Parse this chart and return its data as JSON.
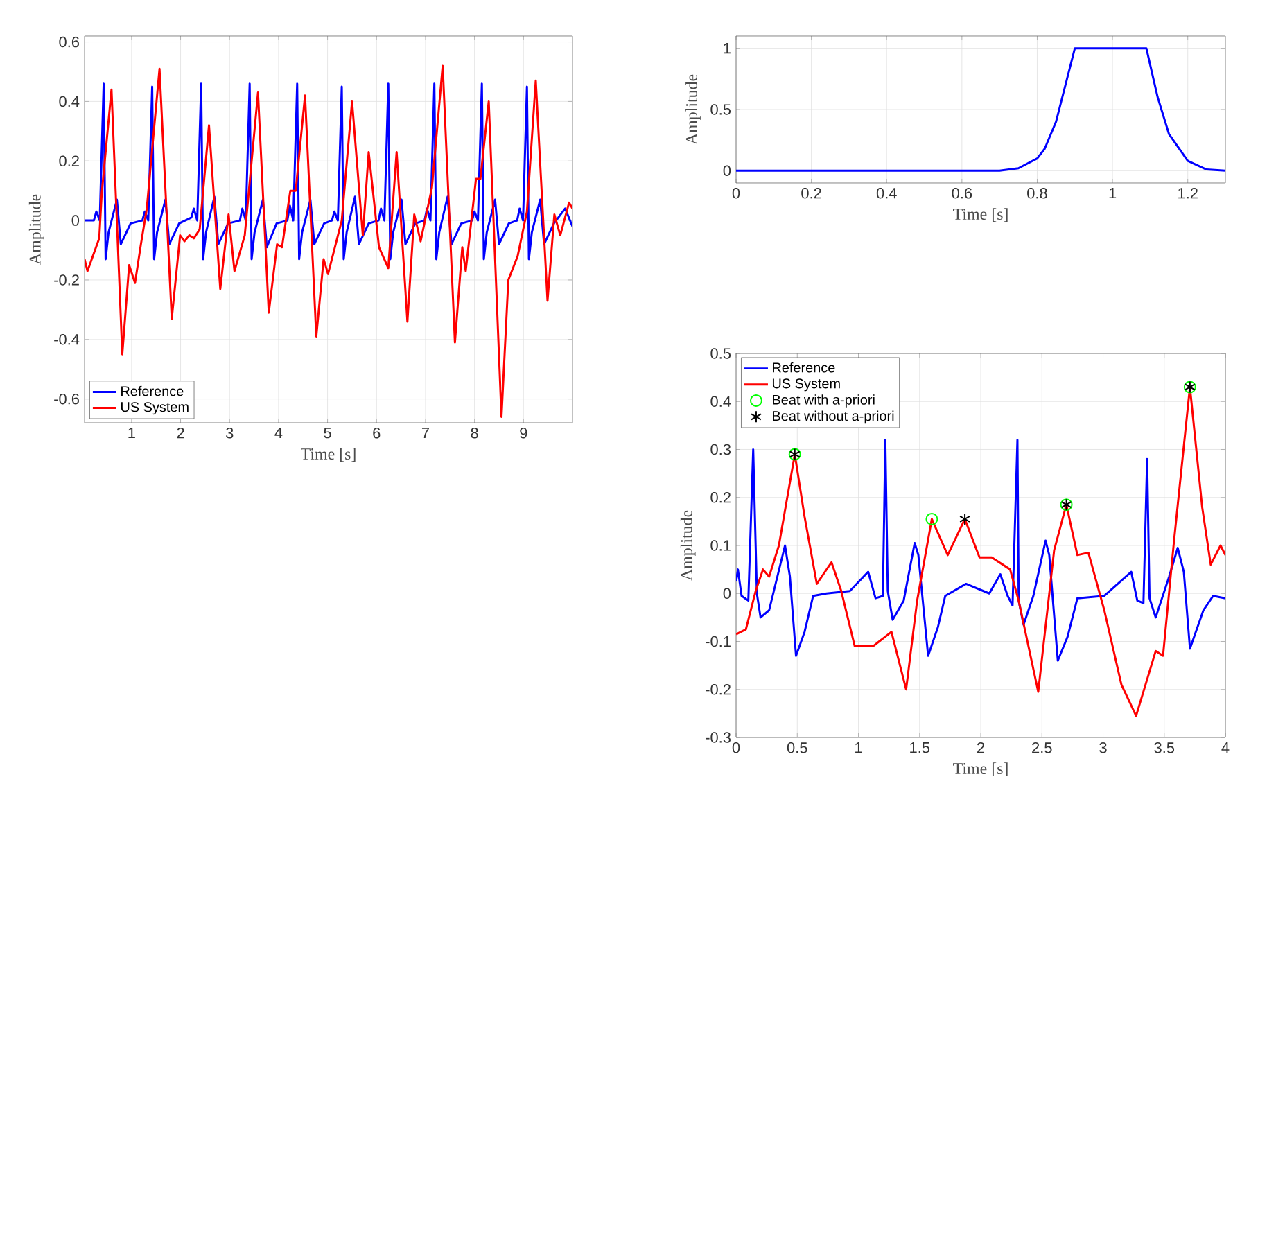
{
  "chart_data": [
    {
      "type": "line",
      "xlabel": "Time [s]",
      "ylabel": "Amplitude",
      "xlim": [
        0.04,
        10
      ],
      "ylim": [
        -0.68,
        0.62
      ],
      "xticks": [
        1,
        2,
        3,
        4,
        5,
        6,
        7,
        8,
        9
      ],
      "yticks": [
        -0.6,
        -0.4,
        -0.2,
        0,
        0.2,
        0.4,
        0.6
      ],
      "grid": true,
      "legend": "bottom left",
      "series": [
        {
          "name": "Reference",
          "color": "#0000ff",
          "x": [
            0.04,
            0.23,
            0.28,
            0.35,
            0.43,
            0.47,
            0.53,
            0.7,
            0.78,
            0.98,
            1.22,
            1.27,
            1.34,
            1.42,
            1.46,
            1.52,
            1.69,
            1.77,
            1.97,
            2.22,
            2.27,
            2.34,
            2.42,
            2.46,
            2.52,
            2.69,
            2.77,
            2.97,
            3.21,
            3.26,
            3.33,
            3.41,
            3.45,
            3.51,
            3.68,
            3.76,
            3.96,
            4.18,
            4.23,
            4.3,
            4.38,
            4.42,
            4.48,
            4.65,
            4.73,
            4.93,
            5.09,
            5.14,
            5.21,
            5.29,
            5.33,
            5.39,
            5.56,
            5.64,
            5.84,
            6.04,
            6.09,
            6.16,
            6.24,
            6.28,
            6.34,
            6.51,
            6.59,
            6.79,
            6.98,
            7.03,
            7.1,
            7.18,
            7.22,
            7.28,
            7.45,
            7.53,
            7.73,
            7.95,
            8.0,
            8.07,
            8.15,
            8.19,
            8.25,
            8.42,
            8.5,
            8.7,
            8.87,
            8.92,
            8.99,
            9.07,
            9.11,
            9.17,
            9.34,
            9.42,
            9.62,
            9.85,
            10.0
          ],
          "values": [
            0.0,
            0.0,
            0.03,
            0.0,
            0.46,
            -0.13,
            -0.04,
            0.07,
            -0.08,
            -0.01,
            0.0,
            0.03,
            0.0,
            0.45,
            -0.13,
            -0.04,
            0.07,
            -0.08,
            -0.01,
            0.01,
            0.04,
            0.0,
            0.46,
            -0.13,
            -0.04,
            0.08,
            -0.08,
            -0.01,
            0.0,
            0.04,
            0.0,
            0.46,
            -0.13,
            -0.04,
            0.07,
            -0.09,
            -0.01,
            0.0,
            0.05,
            0.0,
            0.46,
            -0.13,
            -0.04,
            0.07,
            -0.08,
            -0.01,
            0.0,
            0.03,
            0.0,
            0.45,
            -0.13,
            -0.04,
            0.08,
            -0.08,
            -0.01,
            0.0,
            0.04,
            0.0,
            0.46,
            -0.13,
            -0.04,
            0.07,
            -0.08,
            -0.01,
            0.0,
            0.04,
            0.0,
            0.46,
            -0.13,
            -0.04,
            0.08,
            -0.08,
            -0.01,
            0.0,
            0.03,
            0.0,
            0.46,
            -0.13,
            -0.04,
            0.07,
            -0.08,
            -0.01,
            0.0,
            0.04,
            0.0,
            0.45,
            -0.13,
            -0.04,
            0.07,
            -0.08,
            -0.01,
            0.04,
            -0.02
          ]
        },
        {
          "name": "US System",
          "color": "#ff0000",
          "x": [
            0.04,
            0.1,
            0.34,
            0.39,
            0.59,
            0.81,
            0.95,
            1.07,
            1.19,
            1.31,
            1.57,
            1.82,
            1.99,
            2.08,
            2.18,
            2.27,
            2.39,
            2.58,
            2.81,
            2.98,
            3.1,
            3.31,
            3.58,
            3.8,
            3.97,
            4.07,
            4.24,
            4.35,
            4.54,
            4.77,
            4.92,
            5.01,
            5.29,
            5.5,
            5.72,
            5.84,
            6.05,
            6.24,
            6.41,
            6.63,
            6.77,
            6.9,
            7.13,
            7.35,
            7.6,
            7.75,
            7.82,
            8.03,
            8.12,
            8.29,
            8.55,
            8.69,
            8.88,
            9.07,
            9.25,
            9.49,
            9.63,
            9.75,
            9.93,
            10.0
          ],
          "values": [
            -0.13,
            -0.17,
            -0.06,
            0.09,
            0.44,
            -0.45,
            -0.15,
            -0.21,
            -0.08,
            0.04,
            0.51,
            -0.33,
            -0.05,
            -0.07,
            -0.05,
            -0.06,
            -0.03,
            0.32,
            -0.23,
            0.02,
            -0.17,
            -0.05,
            0.43,
            -0.31,
            -0.08,
            -0.09,
            0.1,
            0.1,
            0.42,
            -0.39,
            -0.13,
            -0.18,
            0.0,
            0.4,
            -0.05,
            0.23,
            -0.09,
            -0.16,
            0.23,
            -0.34,
            0.02,
            -0.07,
            0.11,
            0.52,
            -0.41,
            -0.09,
            -0.17,
            0.14,
            0.14,
            0.4,
            -0.66,
            -0.2,
            -0.12,
            0.03,
            0.47,
            -0.27,
            0.02,
            -0.05,
            0.06,
            0.04
          ]
        }
      ]
    },
    {
      "type": "line",
      "xlabel": "Time [s]",
      "ylabel": "Amplitude",
      "xlim": [
        0,
        1.3
      ],
      "ylim": [
        -0.1,
        1.1
      ],
      "xticks": [
        0,
        0.2,
        0.4,
        0.6,
        0.8,
        1,
        1.2
      ],
      "yticks": [
        0,
        0.5,
        1
      ],
      "grid": true,
      "series": [
        {
          "color": "#0000ff",
          "x": [
            0,
            0.7,
            0.75,
            0.8,
            0.82,
            0.85,
            0.875,
            0.9,
            1.09,
            1.12,
            1.15,
            1.2,
            1.25,
            1.3
          ],
          "values": [
            0,
            0,
            0.02,
            0.1,
            0.18,
            0.4,
            0.7,
            1,
            1,
            0.6,
            0.3,
            0.08,
            0.01,
            0
          ]
        }
      ]
    },
    {
      "type": "line",
      "xlabel": "Time [s]",
      "ylabel": "Amplitude",
      "xlim": [
        0,
        4
      ],
      "ylim": [
        -0.3,
        0.5
      ],
      "xticks": [
        0,
        0.5,
        1,
        1.5,
        2,
        2.5,
        3,
        3.5,
        4
      ],
      "yticks": [
        -0.3,
        -0.2,
        -0.1,
        0,
        0.1,
        0.2,
        0.3,
        0.4,
        0.5
      ],
      "grid": true,
      "legend": "top left",
      "series": [
        {
          "name": "Reference",
          "color": "#0000ff",
          "x": [
            0,
            0.015,
            0.045,
            0.1,
            0.14,
            0.17,
            0.2,
            0.27,
            0.4,
            0.44,
            0.49,
            0.56,
            0.63,
            0.74,
            0.93,
            1.08,
            1.14,
            1.2,
            1.22,
            1.24,
            1.28,
            1.37,
            1.46,
            1.49,
            1.57,
            1.65,
            1.71,
            1.88,
            2.07,
            2.16,
            2.22,
            2.26,
            2.3,
            2.31,
            2.35,
            2.43,
            2.53,
            2.56,
            2.63,
            2.71,
            2.79,
            3.01,
            3.23,
            3.28,
            3.33,
            3.36,
            3.38,
            3.43,
            3.54,
            3.61,
            3.66,
            3.71,
            3.82,
            3.9,
            4.0
          ],
          "values": [
            0.025,
            0.05,
            -0.005,
            -0.015,
            0.3,
            0.0,
            -0.05,
            -0.035,
            0.1,
            0.035,
            -0.13,
            -0.08,
            -0.005,
            0.0,
            0.005,
            0.045,
            -0.01,
            -0.005,
            0.32,
            0.005,
            -0.055,
            -0.015,
            0.105,
            0.08,
            -0.13,
            -0.07,
            -0.005,
            0.02,
            0.0,
            0.04,
            -0.005,
            -0.025,
            0.32,
            -0.015,
            -0.065,
            -0.005,
            0.11,
            0.08,
            -0.14,
            -0.09,
            -0.01,
            -0.005,
            0.045,
            -0.015,
            -0.02,
            0.28,
            -0.01,
            -0.05,
            0.035,
            0.095,
            0.045,
            -0.115,
            -0.035,
            -0.005,
            -0.01
          ]
        },
        {
          "name": "US System",
          "color": "#ff0000",
          "x": [
            0,
            0.08,
            0.16,
            0.22,
            0.27,
            0.35,
            0.48,
            0.56,
            0.66,
            0.78,
            0.86,
            0.97,
            1.12,
            1.27,
            1.39,
            1.48,
            1.6,
            1.73,
            1.87,
            1.99,
            2.09,
            2.24,
            2.31,
            2.47,
            2.6,
            2.7,
            2.79,
            2.88,
            3.01,
            3.15,
            3.27,
            3.43,
            3.49,
            3.58,
            3.71,
            3.81,
            3.88,
            3.96,
            4.0
          ],
          "values": [
            -0.085,
            -0.075,
            0.005,
            0.05,
            0.035,
            0.1,
            0.29,
            0.16,
            0.02,
            0.065,
            0.005,
            -0.11,
            -0.11,
            -0.08,
            -0.2,
            -0.015,
            0.155,
            0.08,
            0.155,
            0.075,
            0.075,
            0.05,
            -0.015,
            -0.205,
            0.09,
            0.185,
            0.08,
            0.085,
            -0.035,
            -0.19,
            -0.255,
            -0.12,
            -0.13,
            0.11,
            0.43,
            0.18,
            0.06,
            0.1,
            0.08
          ]
        },
        {
          "name": "Beat with a-priori",
          "type": "scatter",
          "marker": "circle",
          "color": "#00ff00",
          "x": [
            0.48,
            1.6,
            2.7,
            3.71
          ],
          "values": [
            0.29,
            0.155,
            0.185,
            0.43
          ]
        },
        {
          "name": "Beat without a-priori",
          "type": "scatter",
          "marker": "cross",
          "color": "#000000",
          "x": [
            0.48,
            1.87,
            2.7,
            3.71
          ],
          "values": [
            0.29,
            0.155,
            0.185,
            0.43
          ]
        }
      ]
    }
  ]
}
